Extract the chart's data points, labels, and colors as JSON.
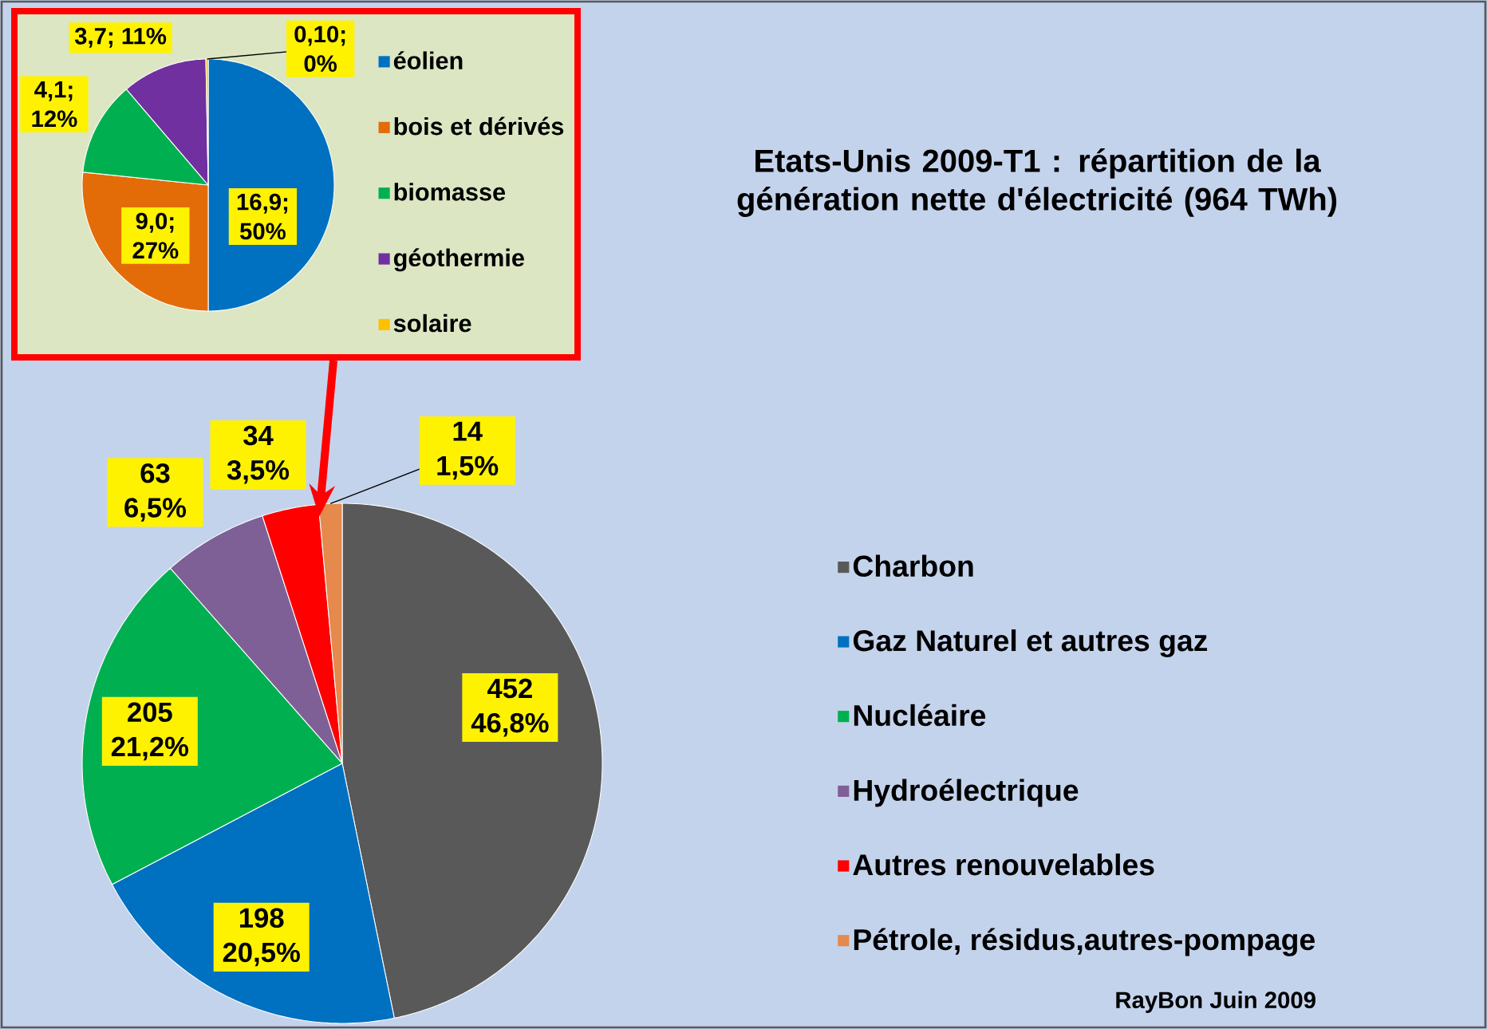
{
  "chart_data": [
    {
      "type": "pie",
      "title": "Etats-Unis 2009-T1 : répartition de la génération nette d'électricité (964 TWh)",
      "categories": [
        "Charbon",
        "Gaz Naturel et autres gaz",
        "Nucléaire",
        "Hydroélectrique",
        "Autres renouvelables",
        "Pétrole, résidus,autres-pompage"
      ],
      "values": [
        452,
        198,
        205,
        63,
        34,
        14
      ],
      "colors": [
        "#595959",
        "#0070c0",
        "#00b050",
        "#7f6096",
        "#ff0000",
        "#e6894c"
      ],
      "value_labels": [
        "452 46,8%",
        "198 20,5%",
        "205 21,2%",
        "63 6,5%",
        "34 3,5%",
        "14 1,5%"
      ],
      "legend": "right",
      "annotations": [
        "RayBon Juin 2009"
      ]
    },
    {
      "type": "pie",
      "categories": [
        "éolien",
        "bois et dérivés",
        "biomasse",
        "géothermie",
        "solaire"
      ],
      "values": [
        16.9,
        9.0,
        4.1,
        3.7,
        0.1
      ],
      "colors": [
        "#0070c0",
        "#e36c09",
        "#00b050",
        "#7030a0",
        "#ffc000"
      ],
      "value_labels": [
        "16,9; 50%",
        "9,0; 27%",
        "4,1; 12%",
        "3,7; 11%",
        "0,10; 0%"
      ],
      "legend": "right"
    }
  ]
}
